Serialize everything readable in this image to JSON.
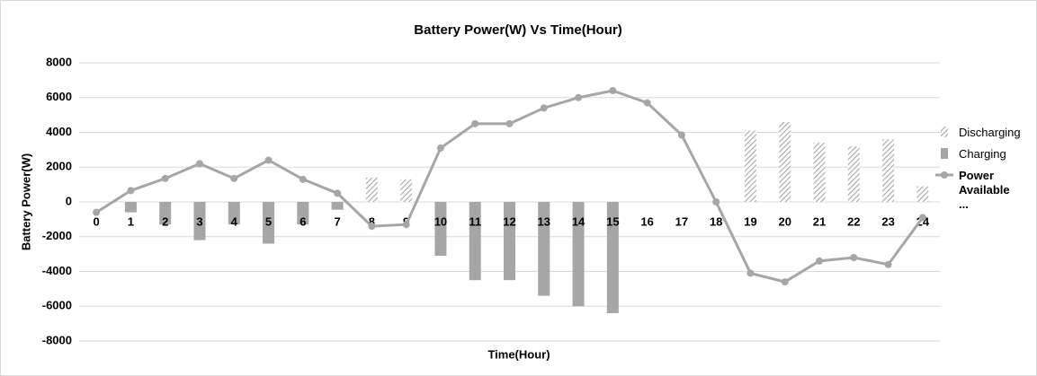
{
  "chart_data": {
    "type": "bar",
    "title": "Battery Power(W) Vs Time(Hour)",
    "x_label": "Time(Hour)",
    "y_label": "Battery Power(W)",
    "categories": [
      "0",
      "1",
      "2",
      "3",
      "4",
      "5",
      "6",
      "7",
      "8",
      "9",
      "10",
      "11",
      "12",
      "13",
      "14",
      "15",
      "16",
      "17",
      "18",
      "19",
      "20",
      "21",
      "22",
      "23",
      "24"
    ],
    "series": [
      {
        "name": "Discharging",
        "type": "bar",
        "hatch": true,
        "color": "#a6a6a6",
        "values": [
          null,
          null,
          null,
          null,
          null,
          null,
          null,
          null,
          1400,
          1300,
          null,
          null,
          null,
          null,
          null,
          null,
          null,
          null,
          null,
          4100,
          4600,
          3400,
          3200,
          3600,
          900
        ]
      },
      {
        "name": "Charging",
        "type": "bar",
        "hatch": false,
        "color": "#a6a6a6",
        "values": [
          null,
          -600,
          -1300,
          -2200,
          -1300,
          -2400,
          -1300,
          -450,
          null,
          null,
          -3100,
          -4500,
          -4500,
          -5400,
          -6000,
          -6400,
          null,
          null,
          null,
          null,
          null,
          null,
          null,
          null,
          null
        ]
      },
      {
        "name": "Power Available ...",
        "type": "line",
        "color": "#a6a6a6",
        "values": [
          -600,
          650,
          1350,
          2200,
          1350,
          2400,
          1300,
          500,
          -1400,
          -1300,
          3100,
          4500,
          4500,
          5400,
          6000,
          6400,
          5700,
          3850,
          0,
          -4100,
          -4600,
          -3400,
          -3200,
          -3600,
          -900
        ]
      }
    ],
    "ylim": [
      -8000,
      8000
    ],
    "yticks": [
      -8000,
      -6000,
      -4000,
      -2000,
      0,
      2000,
      4000,
      6000,
      8000
    ],
    "grid": true,
    "legend": "right"
  }
}
